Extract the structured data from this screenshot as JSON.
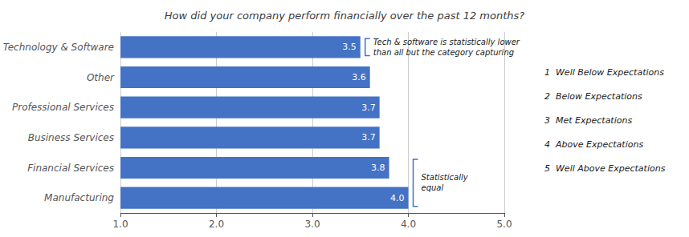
{
  "chart_data": {
    "type": "bar",
    "orientation": "horizontal",
    "title": "How did your company perform financially over the past 12 months?",
    "categories": [
      "Manufacturing",
      "Financial Services",
      "Business Services",
      "Professional Services",
      "Other",
      "Technology & Software"
    ],
    "values": [
      4.0,
      3.8,
      3.7,
      3.7,
      3.6,
      3.5
    ],
    "value_labels": [
      "4.0",
      "3.8",
      "3.7",
      "3.7",
      "3.6",
      "3.5"
    ],
    "data_labels": true,
    "color": "#4472C4",
    "xlim": [
      1.0,
      5.0
    ],
    "xticks": [
      {
        "value": 1.0,
        "label": "1.0"
      },
      {
        "value": 2.0,
        "label": "2.0"
      },
      {
        "value": 3.0,
        "label": "3.0"
      },
      {
        "value": 4.0,
        "label": "4.0"
      },
      {
        "value": 5.0,
        "label": "5.0"
      }
    ],
    "grid": true,
    "annotations": [
      {
        "text": "Tech & software is statistically lower\nthan all but the category capturing",
        "categories": [
          "Technology & Software"
        ],
        "color": "#4472C4"
      },
      {
        "text": "Statistically\nequal",
        "categories": [
          "Manufacturing",
          "Financial Services"
        ],
        "color": "#4472C4"
      },
      {
        "text": "1  Well Below Expectations"
      },
      {
        "text": "2  Below Expectations"
      },
      {
        "text": "3  Met Expectations"
      },
      {
        "text": "4  Above Expectations"
      },
      {
        "text": "5  Well Above Expectations"
      }
    ]
  }
}
